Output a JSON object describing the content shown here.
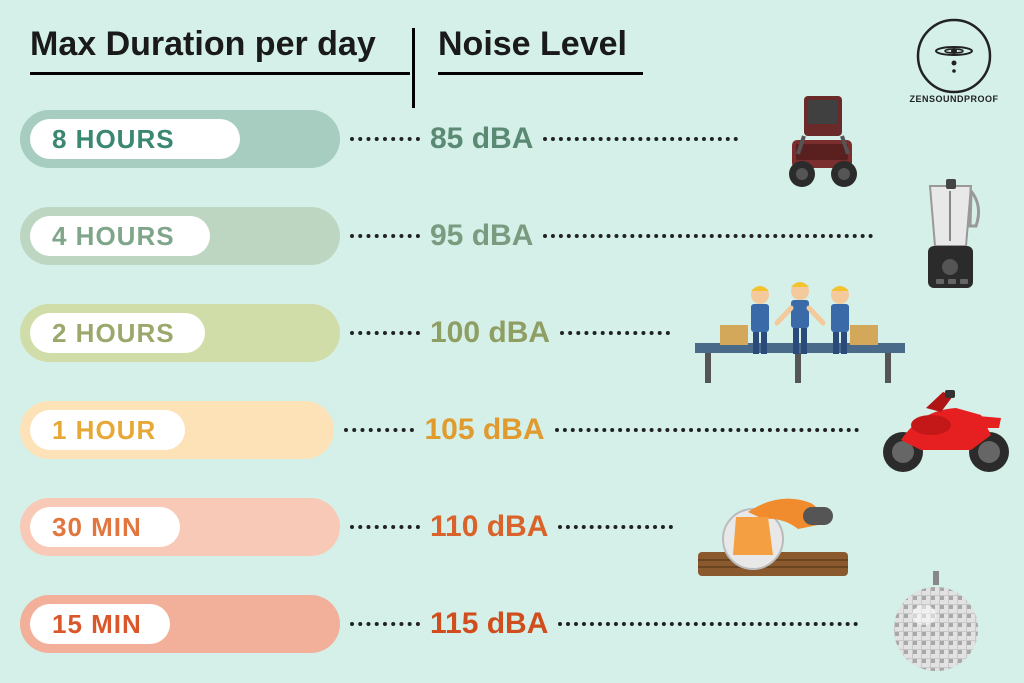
{
  "background_color": "#d4f0e8",
  "headers": {
    "col1": "Max Duration per day",
    "col2": "Noise Level"
  },
  "logo": {
    "text": "ZENSOUNDPROOF"
  },
  "rows": [
    {
      "duration": "8 HOURS",
      "noise": "85 dBA",
      "pill_outer_color": "#a6cdbf",
      "pill_inner_width": 210,
      "text_color": "#3a8772",
      "noise_color": "#5a8a73",
      "dots1_width": 70,
      "dots2_width": 195,
      "icon": "lawnmower",
      "icon_offset_right": false
    },
    {
      "duration": "4 HOURS",
      "noise": "95 dBA",
      "pill_outer_color": "#bdd6c2",
      "pill_inner_width": 180,
      "text_color": "#7fa58a",
      "noise_color": "#7a9b7f",
      "dots1_width": 70,
      "dots2_width": 330,
      "icon": "blender",
      "icon_offset_right": true
    },
    {
      "duration": "2 HOURS",
      "noise": "100 dBA",
      "pill_outer_color": "#d1dda9",
      "pill_inner_width": 175,
      "text_color": "#9ba86c",
      "noise_color": "#8f9e63",
      "dots1_width": 70,
      "dots2_width": 110,
      "icon": "workers",
      "icon_offset_right": false
    },
    {
      "duration": "1 HOUR",
      "noise": "105 dBA",
      "pill_outer_color": "#fce2b6",
      "pill_inner_width": 155,
      "text_color": "#e6a938",
      "noise_color": "#e09a2e",
      "dots1_width": 70,
      "dots2_width": 310,
      "icon": "motorcycle",
      "icon_offset_right": true
    },
    {
      "duration": "30 MIN",
      "noise": "110 dBA",
      "pill_outer_color": "#f9c9b7",
      "pill_inner_width": 150,
      "text_color": "#e1763f",
      "noise_color": "#d9632a",
      "dots1_width": 70,
      "dots2_width": 115,
      "icon": "saw",
      "icon_offset_right": false
    },
    {
      "duration": "15 MIN",
      "noise": "115 dBA",
      "pill_outer_color": "#f2b09a",
      "pill_inner_width": 140,
      "text_color": "#d9572a",
      "noise_color": "#d04d1e",
      "dots1_width": 70,
      "dots2_width": 300,
      "icon": "discoball",
      "icon_offset_right": true
    }
  ]
}
